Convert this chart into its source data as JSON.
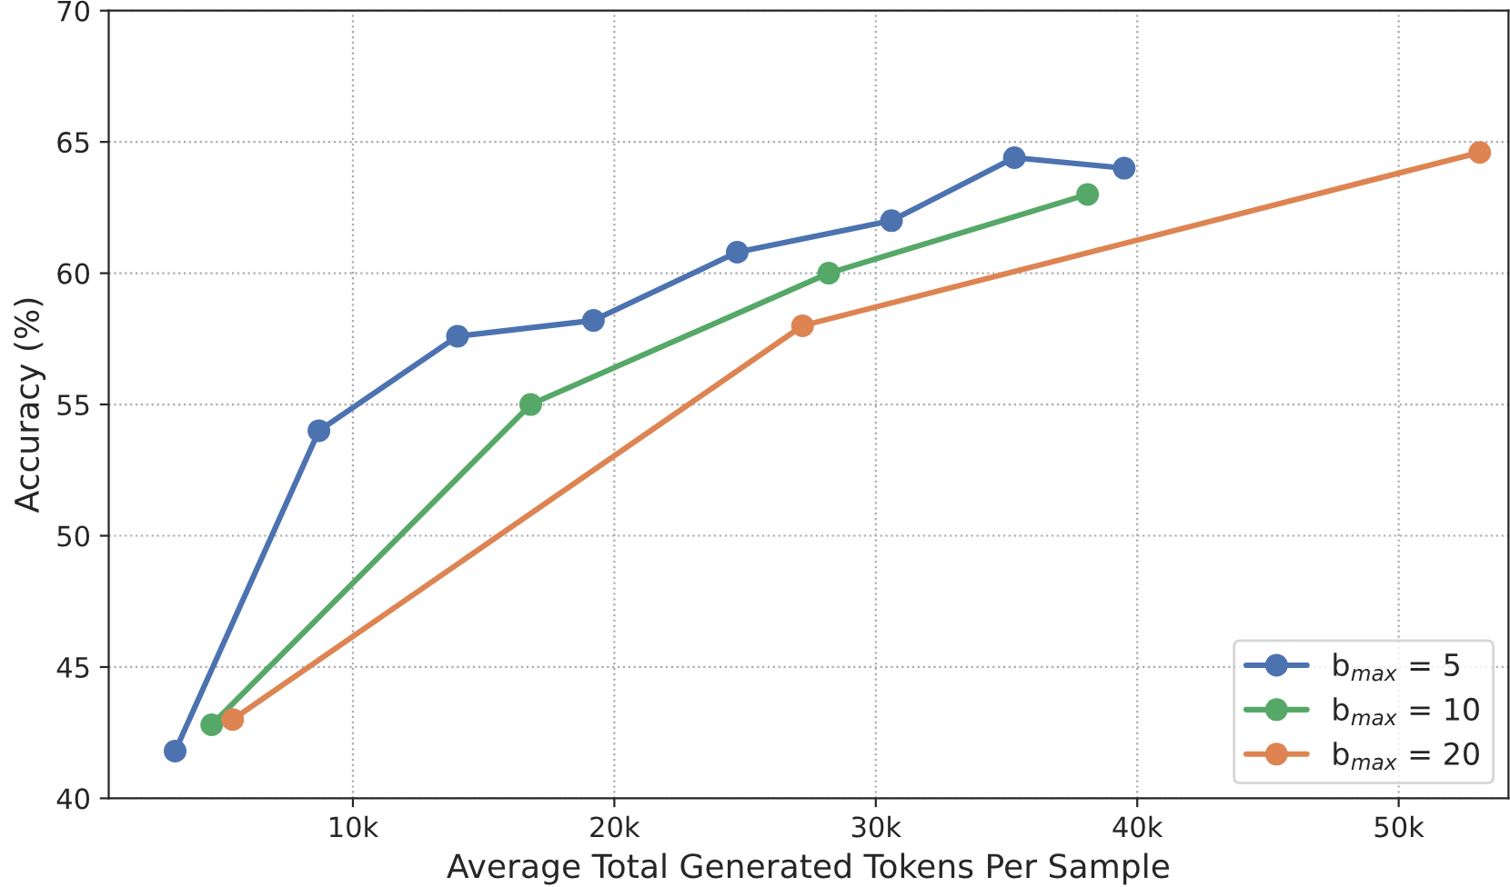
{
  "chart_data": {
    "type": "line",
    "xlabel": "Average Total Generated Tokens Per Sample",
    "ylabel": "Accuracy (%)",
    "xlim": [
      660,
      54200
    ],
    "ylim": [
      40,
      70
    ],
    "xticks": [
      {
        "value": 10000,
        "label": "10k"
      },
      {
        "value": 20000,
        "label": "20k"
      },
      {
        "value": 30000,
        "label": "30k"
      },
      {
        "value": 40000,
        "label": "40k"
      },
      {
        "value": 50000,
        "label": "50k"
      }
    ],
    "yticks": [
      40,
      45,
      50,
      55,
      60,
      65,
      70
    ],
    "grid": true,
    "legend": "bottom right",
    "marker": "circle",
    "line_style": "solid",
    "series": [
      {
        "name": "b$_{max}$ = 5",
        "color": "#4c72b0",
        "x": [
          3200,
          8700,
          14000,
          19200,
          24700,
          30600,
          35300,
          39500
        ],
        "values": [
          41.8,
          54.0,
          57.6,
          58.2,
          60.8,
          62.0,
          64.4,
          64.0
        ]
      },
      {
        "name": "b$_{max}$ = 10",
        "color": "#55a868",
        "x": [
          4600,
          16800,
          28200,
          38100
        ],
        "values": [
          42.8,
          55.0,
          60.0,
          63.0
        ]
      },
      {
        "name": "b$_{max}$ = 20",
        "color": "#dd8452",
        "x": [
          5400,
          27200,
          53100
        ],
        "values": [
          43.0,
          58.0,
          64.6
        ]
      }
    ]
  }
}
